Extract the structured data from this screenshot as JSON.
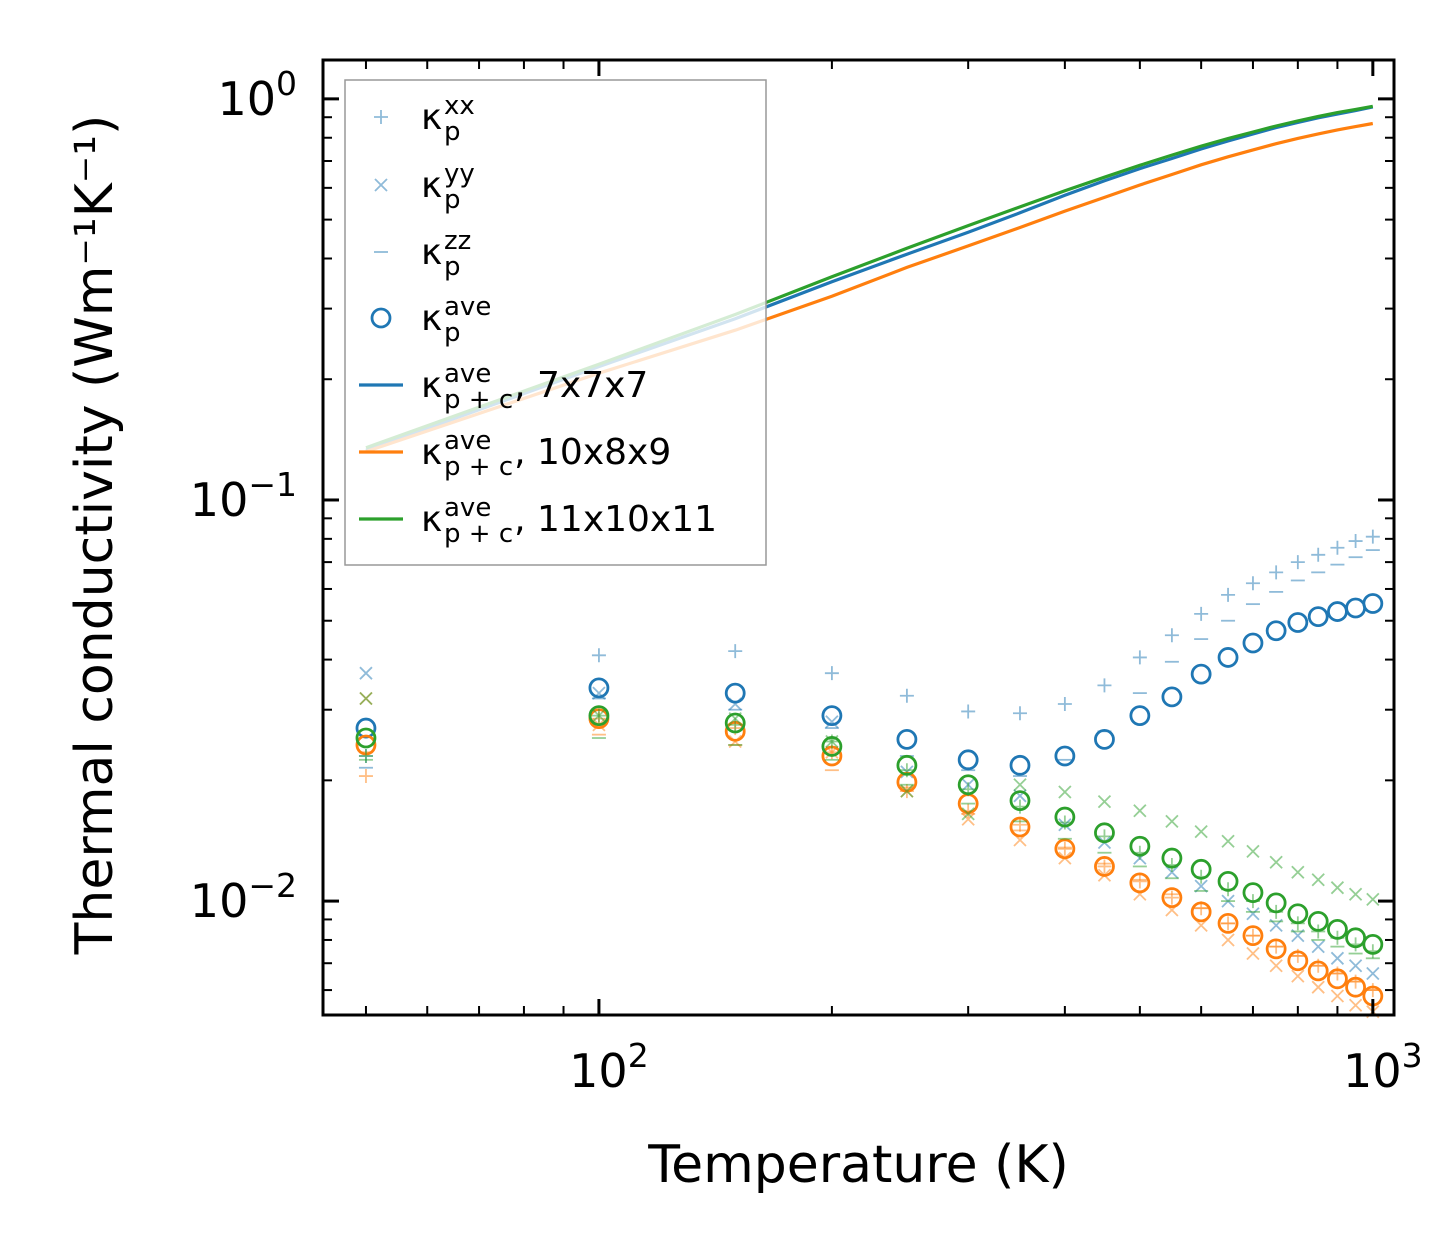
{
  "colors": {
    "blue": "#1f77b4",
    "orange": "#ff7f0e",
    "green": "#2ca02c",
    "axis": "#000000",
    "legend_border": "#999999"
  },
  "chart_data": {
    "type": "scatter",
    "xscale": "log",
    "yscale": "log",
    "xlabel": "Temperature (K)",
    "ylabel": "Thermal conductivity (Wm⁻¹K⁻¹)",
    "xlim": [
      44,
      1065
    ],
    "ylim": [
      0.0052,
      1.25
    ],
    "xticks": [
      {
        "value": 100,
        "base": "10",
        "exp": "2"
      },
      {
        "value": 1000,
        "base": "10",
        "exp": "3"
      }
    ],
    "yticks": [
      {
        "value": 0.01,
        "base": "10",
        "exp": "−2"
      },
      {
        "value": 0.1,
        "base": "10",
        "exp": "−1"
      },
      {
        "value": 1,
        "base": "10",
        "exp": "0"
      }
    ],
    "legend": {
      "position": "upper-left",
      "entries": [
        {
          "symbol": "+",
          "base": "κ",
          "sup": "xx",
          "sub": "p",
          "suffix": ""
        },
        {
          "symbol": "x",
          "base": "κ",
          "sup": "yy",
          "sub": "p",
          "suffix": ""
        },
        {
          "symbol": "_",
          "base": "κ",
          "sup": "zz",
          "sub": "p",
          "suffix": ""
        },
        {
          "symbol": "o",
          "base": "κ",
          "sup": "ave",
          "sub": "p",
          "suffix": ""
        },
        {
          "symbol": "line-blue",
          "base": "κ",
          "sup": "ave",
          "sub": "p + c",
          "suffix": ", 7x7x7"
        },
        {
          "symbol": "line-orange",
          "base": "κ",
          "sup": "ave",
          "sub": "p + c",
          "suffix": ", 10x8x9"
        },
        {
          "symbol": "line-green",
          "base": "κ",
          "sup": "ave",
          "sub": "p + c",
          "suffix": ", 11x10x11"
        }
      ]
    },
    "temperature": [
      50,
      100,
      150,
      200,
      250,
      300,
      350,
      400,
      450,
      500,
      550,
      600,
      650,
      700,
      750,
      800,
      850,
      900,
      950,
      1000
    ],
    "series": [
      {
        "name": "7x7x7",
        "color": "blue",
        "kappa_p_xx": [
          0.023,
          0.041,
          0.042,
          0.037,
          0.0325,
          0.0297,
          0.0294,
          0.031,
          0.0345,
          0.0405,
          0.046,
          0.052,
          0.058,
          0.062,
          0.066,
          0.07,
          0.073,
          0.076,
          0.079,
          0.081
        ],
        "kappa_p_yy": [
          0.037,
          0.033,
          0.031,
          0.028,
          0.021,
          0.0195,
          0.0183,
          0.0155,
          0.014,
          0.0128,
          0.0118,
          0.0109,
          0.01,
          0.0093,
          0.0087,
          0.0082,
          0.0077,
          0.0072,
          0.0069,
          0.0066
        ],
        "kappa_p_zz": [
          0.0215,
          0.032,
          0.03,
          0.027,
          0.023,
          0.0212,
          0.0205,
          0.0225,
          0.0265,
          0.033,
          0.0395,
          0.045,
          0.05,
          0.055,
          0.059,
          0.063,
          0.066,
          0.069,
          0.072,
          0.075
        ],
        "kappa_p_ave": [
          0.027,
          0.034,
          0.033,
          0.029,
          0.0253,
          0.0225,
          0.0218,
          0.023,
          0.0253,
          0.029,
          0.0323,
          0.0368,
          0.0405,
          0.044,
          0.0472,
          0.0495,
          0.0512,
          0.0527,
          0.0538,
          0.0552
        ],
        "kappa_pc_ave": [
          0.133,
          0.215,
          0.283,
          0.35,
          0.41,
          0.465,
          0.52,
          0.575,
          0.625,
          0.67,
          0.71,
          0.75,
          0.785,
          0.818,
          0.848,
          0.873,
          0.897,
          0.917,
          0.935,
          0.955
        ]
      },
      {
        "name": "10x8x9",
        "color": "orange",
        "kappa_p_xx": [
          0.0205,
          0.0285,
          0.027,
          0.0235,
          0.0188,
          0.0168,
          0.0155,
          0.0135,
          0.0122,
          0.0112,
          0.0102,
          0.0096,
          0.0088,
          0.0082,
          0.0077,
          0.0073,
          0.0069,
          0.0066,
          0.0063,
          0.006
        ],
        "kappa_p_yy": [
          0.032,
          0.0275,
          0.025,
          0.0235,
          0.0188,
          0.016,
          0.0142,
          0.0128,
          0.0116,
          0.0104,
          0.0095,
          0.0087,
          0.008,
          0.0074,
          0.0069,
          0.0065,
          0.0061,
          0.0058,
          0.0055,
          0.0053
        ],
        "kappa_p_zz": [
          0.0235,
          0.026,
          0.0245,
          0.0212,
          0.0192,
          0.0165,
          0.015,
          0.0136,
          0.0124,
          0.0113,
          0.0104,
          0.0096,
          0.0088,
          0.0082,
          0.0077,
          0.0073,
          0.0069,
          0.0066,
          0.0063,
          0.006
        ],
        "kappa_p_ave": [
          0.0245,
          0.0285,
          0.0265,
          0.023,
          0.0198,
          0.0175,
          0.0153,
          0.0135,
          0.0122,
          0.0111,
          0.0102,
          0.0094,
          0.0088,
          0.0082,
          0.0076,
          0.0071,
          0.0067,
          0.0064,
          0.0061,
          0.0058
        ],
        "kappa_pc_ave": [
          0.132,
          0.207,
          0.265,
          0.322,
          0.38,
          0.43,
          0.478,
          0.525,
          0.568,
          0.61,
          0.648,
          0.685,
          0.717,
          0.746,
          0.773,
          0.797,
          0.818,
          0.837,
          0.853,
          0.868
        ]
      },
      {
        "name": "11x10x11",
        "color": "green",
        "kappa_p_xx": [
          0.023,
          0.029,
          0.0275,
          0.025,
          0.0212,
          0.019,
          0.0172,
          0.0157,
          0.0145,
          0.0132,
          0.0123,
          0.0115,
          0.0107,
          0.01,
          0.0094,
          0.0088,
          0.0084,
          0.0081,
          0.0078,
          0.0075
        ],
        "kappa_p_yy": [
          0.032,
          0.029,
          0.0285,
          0.025,
          0.0188,
          0.0165,
          0.0195,
          0.0187,
          0.0177,
          0.0168,
          0.0158,
          0.0149,
          0.0141,
          0.0133,
          0.0125,
          0.0118,
          0.0113,
          0.0108,
          0.0104,
          0.0101
        ],
        "kappa_p_zz": [
          0.0225,
          0.0255,
          0.0245,
          0.0225,
          0.0195,
          0.0175,
          0.0158,
          0.0143,
          0.0132,
          0.0122,
          0.0114,
          0.0106,
          0.01,
          0.0094,
          0.0089,
          0.0084,
          0.008,
          0.0077,
          0.0074,
          0.0072
        ],
        "kappa_p_ave": [
          0.0255,
          0.029,
          0.0278,
          0.0243,
          0.0218,
          0.0195,
          0.0178,
          0.0162,
          0.0148,
          0.0137,
          0.0128,
          0.012,
          0.0112,
          0.0105,
          0.0099,
          0.0093,
          0.0089,
          0.0085,
          0.0081,
          0.0078
        ],
        "kappa_pc_ave": [
          0.135,
          0.218,
          0.29,
          0.36,
          0.424,
          0.483,
          0.538,
          0.59,
          0.638,
          0.683,
          0.724,
          0.762,
          0.796,
          0.827,
          0.856,
          0.881,
          0.904,
          0.924,
          0.941,
          0.958
        ]
      }
    ]
  }
}
